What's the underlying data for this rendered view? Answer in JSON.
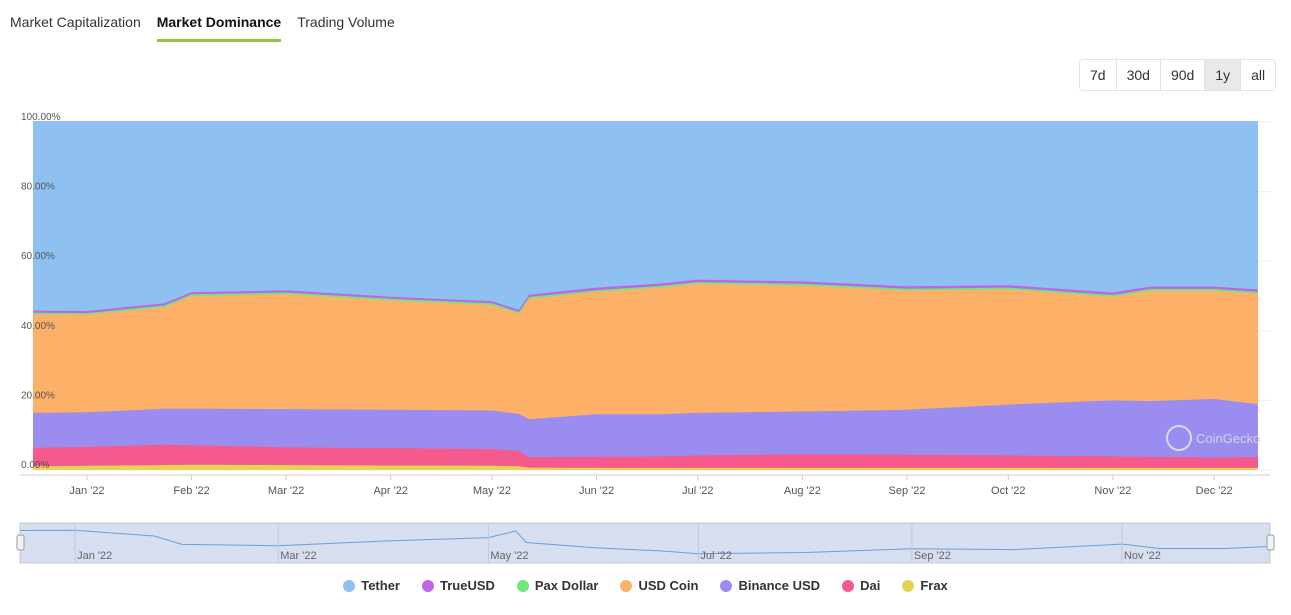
{
  "tabs": [
    {
      "label": "Market Capitalization",
      "active": false
    },
    {
      "label": "Market Dominance",
      "active": true
    },
    {
      "label": "Trading Volume",
      "active": false
    }
  ],
  "ranges": [
    {
      "label": "7d",
      "active": false
    },
    {
      "label": "30d",
      "active": false
    },
    {
      "label": "90d",
      "active": false
    },
    {
      "label": "1y",
      "active": true
    },
    {
      "label": "all",
      "active": false
    }
  ],
  "watermark": "CoinGecko",
  "chart_data": {
    "type": "area",
    "stacked": true,
    "title": "",
    "xlabel": "",
    "ylabel": "",
    "ylim": [
      0,
      100
    ],
    "y_ticks": [
      "0.00%",
      "20.00%",
      "40.00%",
      "60.00%",
      "80.00%",
      "100.00%"
    ],
    "x_ticks": [
      "Jan '22",
      "Feb '22",
      "Mar '22",
      "Apr '22",
      "May '22",
      "Jun '22",
      "Jul '22",
      "Aug '22",
      "Sep '22",
      "Oct '22",
      "Nov '22",
      "Dec '22"
    ],
    "x_tick_dates": [
      "2022-01-01",
      "2022-02-01",
      "2022-03-01",
      "2022-04-01",
      "2022-05-01",
      "2022-06-01",
      "2022-07-01",
      "2022-08-01",
      "2022-09-01",
      "2022-10-01",
      "2022-11-01",
      "2022-12-01"
    ],
    "x": [
      "2021-12-16",
      "2022-01-01",
      "2022-01-24",
      "2022-02-01",
      "2022-03-01",
      "2022-04-01",
      "2022-05-01",
      "2022-05-09",
      "2022-05-12",
      "2022-06-01",
      "2022-06-20",
      "2022-07-01",
      "2022-08-01",
      "2022-09-01",
      "2022-10-01",
      "2022-11-01",
      "2022-11-12",
      "2022-12-01",
      "2022-12-14"
    ],
    "legend_position": "bottom",
    "series": [
      {
        "name": "Frax",
        "color": "#e4d354",
        "values": [
          1.1,
          1.2,
          1.4,
          1.5,
          1.4,
          1.3,
          1.2,
          1.1,
          0.7,
          0.6,
          0.6,
          0.6,
          0.6,
          0.6,
          0.6,
          0.6,
          0.6,
          0.6,
          0.6
        ]
      },
      {
        "name": "Dai",
        "color": "#f45b8c",
        "values": [
          5.3,
          5.4,
          5.9,
          5.6,
          5.1,
          5.0,
          4.8,
          4.4,
          3.0,
          3.2,
          3.3,
          3.6,
          3.9,
          3.8,
          3.6,
          3.3,
          3.2,
          3.0,
          3.1
        ]
      },
      {
        "name": "Binance USD",
        "color": "#9b8cf0",
        "values": [
          10.0,
          10.0,
          10.3,
          10.5,
          11.0,
          11.0,
          11.1,
          10.6,
          10.9,
          12.2,
          12.1,
          12.2,
          12.3,
          12.9,
          14.6,
          16.1,
          16.0,
          16.8,
          15.2
        ]
      },
      {
        "name": "USD Coin",
        "color": "#fdb068",
        "values": [
          28.3,
          28.0,
          29.2,
          32.4,
          33.0,
          31.4,
          30.3,
          28.8,
          34.6,
          35.2,
          36.4,
          37.1,
          36.2,
          34.3,
          33.1,
          29.8,
          31.7,
          31.1,
          31.8
        ]
      },
      {
        "name": "Pax Dollar",
        "color": "#6ee87b",
        "values": [
          0.5,
          0.5,
          0.5,
          0.5,
          0.5,
          0.5,
          0.5,
          0.5,
          0.5,
          0.5,
          0.5,
          0.5,
          0.5,
          0.5,
          0.5,
          0.5,
          0.5,
          0.5,
          0.5
        ]
      },
      {
        "name": "TrueUSD",
        "color": "#c065e8",
        "values": [
          0.6,
          0.6,
          0.6,
          0.6,
          0.6,
          0.6,
          0.6,
          0.6,
          0.7,
          0.7,
          0.7,
          0.7,
          0.7,
          0.7,
          0.7,
          0.7,
          0.7,
          0.7,
          0.7
        ]
      },
      {
        "name": "Tether",
        "color": "#8ec0f2",
        "values": [
          54.2,
          54.3,
          52.1,
          48.9,
          48.4,
          50.2,
          51.5,
          54.0,
          49.6,
          47.6,
          46.4,
          45.3,
          45.8,
          47.2,
          46.9,
          49.0,
          47.3,
          47.3,
          48.1
        ]
      }
    ],
    "legend_order": [
      "Tether",
      "TrueUSD",
      "Pax Dollar",
      "USD Coin",
      "Binance USD",
      "Dai",
      "Frax"
    ],
    "navigator": {
      "x_ticks": [
        "Jan '22",
        "Mar '22",
        "May '22",
        "Jul '22",
        "Sep '22",
        "Nov '22"
      ],
      "x_tick_dates": [
        "2022-01-01",
        "2022-03-01",
        "2022-05-01",
        "2022-07-01",
        "2022-09-01",
        "2022-11-01"
      ]
    }
  }
}
